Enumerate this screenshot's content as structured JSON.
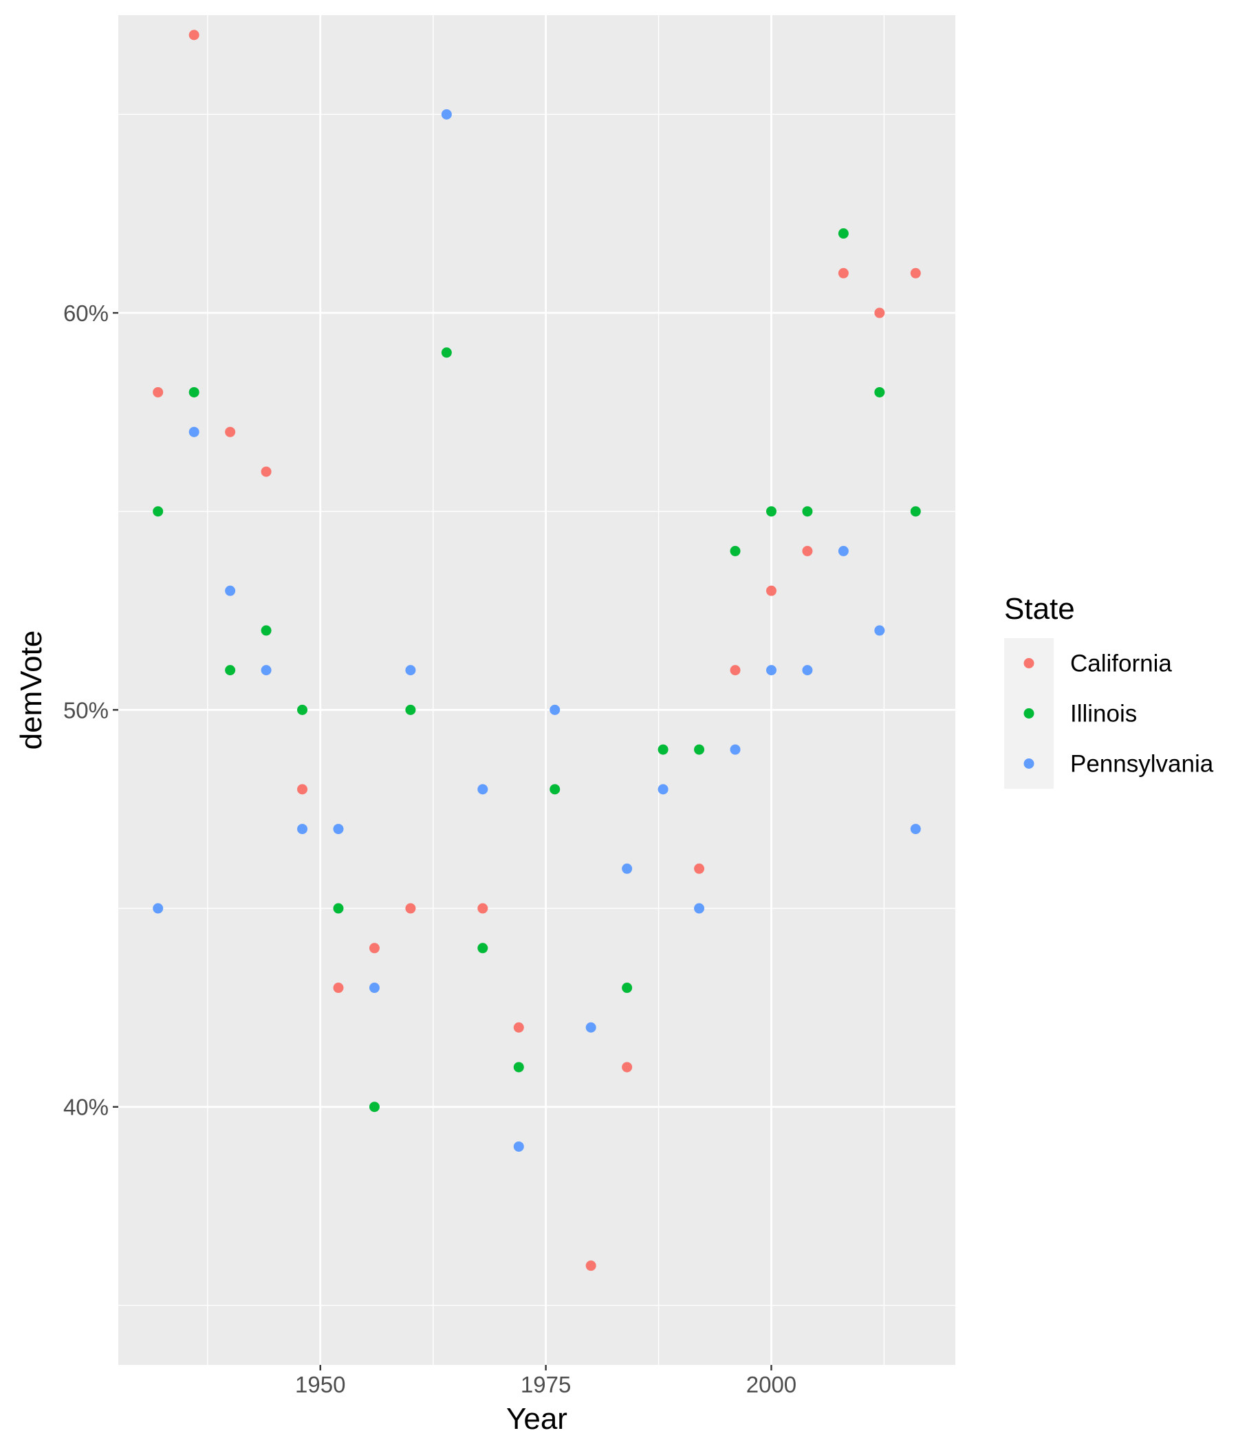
{
  "chart_data": {
    "type": "scatter",
    "xlabel": "Year",
    "ylabel": "demVote",
    "xlim": [
      1927.6,
      2020.4
    ],
    "ylim": [
      33.5,
      67.5
    ],
    "x_ticks": [
      1950,
      1975,
      2000
    ],
    "x_minor_ticks": [
      1937.5,
      1962.5,
      1987.5,
      2012.5
    ],
    "y_ticks": [
      40,
      50,
      60
    ],
    "y_tick_labels": [
      "40%",
      "50%",
      "60%"
    ],
    "y_minor_ticks": [
      35,
      45,
      55,
      65
    ],
    "grid": true,
    "panel_background": "#EBEBEB",
    "legend": {
      "title": "State",
      "position": "right"
    },
    "series": [
      {
        "name": "California",
        "color": "#F8766D",
        "points": [
          [
            1932,
            58
          ],
          [
            1936,
            67
          ],
          [
            1940,
            57
          ],
          [
            1944,
            56
          ],
          [
            1948,
            48
          ],
          [
            1952,
            43
          ],
          [
            1956,
            44
          ],
          [
            1960,
            45
          ],
          [
            1968,
            45
          ],
          [
            1972,
            42
          ],
          [
            1980,
            36
          ],
          [
            1984,
            41
          ],
          [
            1992,
            46
          ],
          [
            1996,
            51
          ],
          [
            2000,
            53
          ],
          [
            2004,
            54
          ],
          [
            2008,
            61
          ],
          [
            2012,
            60
          ],
          [
            2016,
            61
          ]
        ]
      },
      {
        "name": "Illinois",
        "color": "#00BA38",
        "points": [
          [
            1932,
            55
          ],
          [
            1936,
            58
          ],
          [
            1940,
            51
          ],
          [
            1944,
            52
          ],
          [
            1948,
            50
          ],
          [
            1952,
            45
          ],
          [
            1956,
            40
          ],
          [
            1960,
            50
          ],
          [
            1964,
            59
          ],
          [
            1968,
            44
          ],
          [
            1972,
            41
          ],
          [
            1976,
            48
          ],
          [
            1984,
            43
          ],
          [
            1988,
            49
          ],
          [
            1992,
            49
          ],
          [
            1996,
            54
          ],
          [
            2000,
            55
          ],
          [
            2004,
            55
          ],
          [
            2008,
            62
          ],
          [
            2012,
            58
          ],
          [
            2016,
            55
          ]
        ]
      },
      {
        "name": "Pennsylvania",
        "color": "#619CFF",
        "points": [
          [
            1932,
            45
          ],
          [
            1936,
            57
          ],
          [
            1940,
            53
          ],
          [
            1944,
            51
          ],
          [
            1948,
            47
          ],
          [
            1952,
            47
          ],
          [
            1956,
            43
          ],
          [
            1960,
            51
          ],
          [
            1964,
            65
          ],
          [
            1968,
            48
          ],
          [
            1972,
            39
          ],
          [
            1976,
            50
          ],
          [
            1980,
            42
          ],
          [
            1984,
            46
          ],
          [
            1988,
            48
          ],
          [
            1992,
            45
          ],
          [
            1996,
            49
          ],
          [
            2000,
            51
          ],
          [
            2004,
            51
          ],
          [
            2008,
            54
          ],
          [
            2012,
            52
          ],
          [
            2016,
            47
          ]
        ]
      }
    ]
  }
}
